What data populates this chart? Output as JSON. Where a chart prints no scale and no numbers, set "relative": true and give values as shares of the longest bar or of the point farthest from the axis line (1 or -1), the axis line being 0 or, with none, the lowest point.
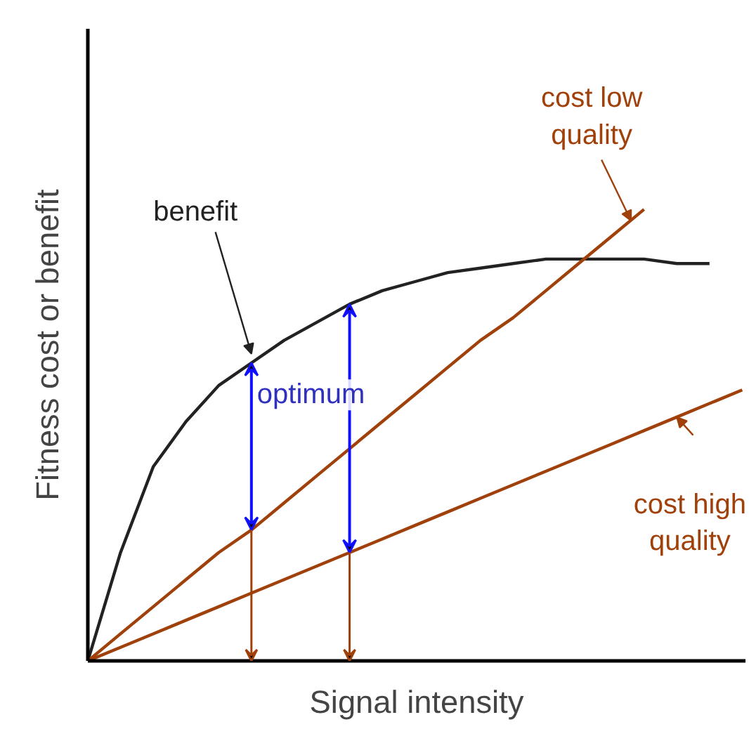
{
  "chart_data": {
    "type": "line",
    "relative": true,
    "xlabel": "Signal intensity",
    "ylabel": "Fitness cost or benefit",
    "categories": [
      null,
      null,
      null,
      null,
      null,
      null,
      null,
      null,
      null,
      null,
      null,
      null,
      null,
      null,
      null,
      null,
      null,
      null,
      null,
      null,
      null
    ],
    "series": [
      {
        "name": "benefit",
        "color": "#222222",
        "values": [
          0,
          0.24,
          0.43,
          0.53,
          0.61,
          0.66,
          0.71,
          0.75,
          0.79,
          0.82,
          0.84,
          0.86,
          0.87,
          0.88,
          0.89,
          0.89,
          0.89,
          0.89,
          0.88,
          0.88,
          null
        ]
      },
      {
        "name": "cost low quality",
        "color": "#a0400a",
        "values": [
          0,
          0.06,
          0.12,
          0.18,
          0.24,
          0.29,
          0.35,
          0.41,
          0.47,
          0.53,
          0.59,
          0.65,
          0.71,
          0.76,
          0.82,
          0.88,
          0.94,
          1,
          null,
          null,
          null
        ]
      },
      {
        "name": "cost high quality",
        "color": "#a0400a",
        "values": [
          0,
          0.03,
          0.06,
          0.09,
          0.12,
          0.15,
          0.18,
          0.21,
          0.24,
          0.27,
          0.3,
          0.33,
          0.36,
          0.39,
          0.42,
          0.45,
          0.48,
          0.51,
          0.54,
          0.57,
          0.6
        ]
      }
    ],
    "annotations": [
      "optimum"
    ],
    "legend": false,
    "grid": false,
    "marker": "none",
    "line_style": "solid"
  }
}
